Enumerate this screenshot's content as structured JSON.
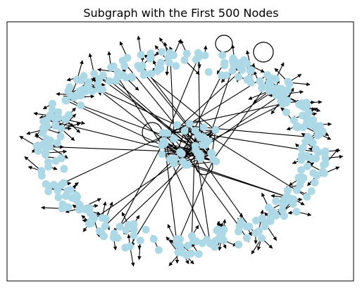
{
  "figure": {
    "title": "Subgraph with the First 500 Nodes"
  },
  "graph": {
    "type": "directed-network",
    "node_color": "#add8e6",
    "edge_color": "#000000",
    "background": "#ffffff",
    "frame_color": "#000000",
    "node_count_shown": 500,
    "layout": "spring",
    "has_self_loops": true
  }
}
